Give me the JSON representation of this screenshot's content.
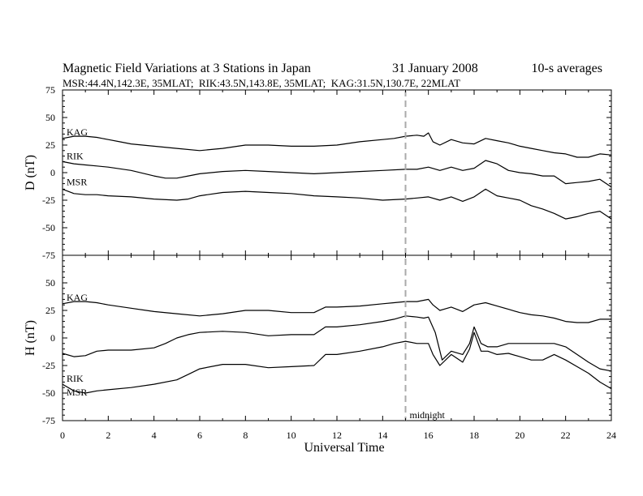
{
  "header": {
    "title": "Magnetic Field Variations at 3 Stations in Japan",
    "date": "31 January 2008",
    "averaging": "10-s averages",
    "stations": "MSR:44.4N,142.3E, 35MLAT;  RIK:43.5N,143.8E, 35MLAT;  KAG:31.5N,130.7E, 22MLAT"
  },
  "colors": {
    "trace": "#000000",
    "marker": "#aaaaaa",
    "background": "#ffffff"
  },
  "chart_data": {
    "type": "line",
    "x_label": "Universal Time",
    "x_range": [
      0,
      24
    ],
    "x_ticks": [
      0,
      2,
      4,
      6,
      8,
      10,
      12,
      14,
      16,
      18,
      20,
      22,
      24
    ],
    "x_tick_labels": [
      "0",
      "2",
      "4",
      "6",
      "8",
      "10",
      "12",
      "14",
      "16",
      "18",
      "20",
      "22",
      "24"
    ],
    "marker": {
      "x": 15,
      "label": "midnight",
      "style": "dashed"
    },
    "panels": [
      {
        "name": "D",
        "y_label": "D (nT)",
        "y_range": [
          -75,
          75
        ],
        "y_ticks": [
          75,
          50,
          25,
          0,
          -25,
          -50,
          -75
        ],
        "y_tick_labels": [
          "75",
          "50",
          "25",
          "0",
          "-25",
          "-50",
          "-75"
        ],
        "series": [
          {
            "name": "KAG",
            "x": [
              0,
              0.5,
              1,
              1.5,
              2,
              2.5,
              3,
              4,
              5,
              6,
              7,
              8,
              9,
              10,
              11,
              12,
              13,
              14,
              14.5,
              15,
              15.5,
              15.8,
              16,
              16.2,
              16.5,
              17,
              17.5,
              18,
              18.5,
              19,
              19.5,
              20,
              20.5,
              21,
              21.5,
              22,
              22.5,
              23,
              23.5,
              24
            ],
            "y": [
              31,
              33,
              33,
              32,
              30,
              28,
              26,
              24,
              22,
              20,
              22,
              25,
              25,
              24,
              24,
              25,
              28,
              30,
              31,
              33,
              34,
              33,
              36,
              28,
              25,
              30,
              27,
              26,
              31,
              29,
              27,
              24,
              22,
              20,
              18,
              17,
              14,
              14,
              17,
              16
            ]
          },
          {
            "name": "RIK",
            "x": [
              0,
              0.5,
              1,
              1.5,
              2,
              3,
              4,
              4.5,
              5,
              5.5,
              6,
              7,
              8,
              9,
              10,
              11,
              12,
              13,
              14,
              15,
              15.5,
              16,
              16.5,
              17,
              17.5,
              18,
              18.5,
              19,
              19.5,
              20,
              20.5,
              21,
              21.5,
              22,
              22.5,
              23,
              23.5,
              24
            ],
            "y": [
              10,
              8,
              7,
              6,
              5,
              2,
              -3,
              -5,
              -5,
              -3,
              -1,
              1,
              2,
              1,
              0,
              -1,
              0,
              1,
              2,
              3,
              3,
              5,
              2,
              5,
              2,
              4,
              11,
              8,
              2,
              0,
              -1,
              -3,
              -3,
              -10,
              -9,
              -8,
              -6,
              -13
            ]
          },
          {
            "name": "MSR",
            "x": [
              0,
              0.5,
              1,
              1.5,
              2,
              3,
              4,
              5,
              5.5,
              6,
              7,
              8,
              9,
              10,
              11,
              12,
              13,
              14,
              15,
              15.5,
              16,
              16.5,
              17,
              17.5,
              18,
              18.5,
              19,
              19.5,
              20,
              20.5,
              21,
              21.5,
              22,
              22.5,
              23,
              23.5,
              24
            ],
            "y": [
              -15,
              -19,
              -20,
              -20,
              -21,
              -22,
              -24,
              -25,
              -24,
              -21,
              -18,
              -17,
              -18,
              -19,
              -21,
              -22,
              -23,
              -25,
              -24,
              -23,
              -22,
              -25,
              -22,
              -26,
              -22,
              -15,
              -21,
              -23,
              -25,
              -30,
              -33,
              -37,
              -42,
              -40,
              -37,
              -35,
              -42
            ]
          }
        ]
      },
      {
        "name": "H",
        "y_label": "H (nT)",
        "y_range": [
          -75,
          75
        ],
        "y_ticks": [
          75,
          50,
          25,
          0,
          -25,
          -50,
          -75
        ],
        "y_tick_labels": [
          "75",
          "50",
          "25",
          "0",
          "-25",
          "-50",
          "-75"
        ],
        "series": [
          {
            "name": "KAG",
            "x": [
              0,
              0.5,
              1,
              1.5,
              2,
              3,
              4,
              5,
              6,
              7,
              8,
              9,
              10,
              11,
              11.5,
              12,
              13,
              14,
              14.5,
              15,
              15.5,
              16,
              16.2,
              16.5,
              17,
              17.5,
              18,
              18.5,
              19,
              19.5,
              20,
              20.5,
              21,
              21.5,
              22,
              22.5,
              23,
              23.5,
              24
            ],
            "y": [
              31,
              33,
              33,
              32,
              30,
              27,
              24,
              22,
              20,
              22,
              25,
              25,
              23,
              23,
              28,
              28,
              29,
              31,
              32,
              33,
              33,
              35,
              30,
              25,
              28,
              24,
              30,
              32,
              29,
              26,
              23,
              21,
              20,
              18,
              15,
              14,
              14,
              17,
              17
            ]
          },
          {
            "name": "RIK",
            "x": [
              0,
              0.5,
              1,
              1.5,
              2,
              3,
              4,
              4.5,
              5,
              5.5,
              6,
              7,
              8,
              9,
              10,
              11,
              11.5,
              12,
              13,
              14,
              14.5,
              15,
              15.5,
              15.8,
              16,
              16.3,
              16.6,
              17,
              17.5,
              17.8,
              18,
              18.3,
              18.6,
              19,
              19.5,
              20,
              20.5,
              21,
              21.5,
              22,
              22.5,
              23,
              23.5,
              24
            ],
            "y": [
              -14,
              -17,
              -16,
              -12,
              -11,
              -11,
              -9,
              -5,
              0,
              3,
              5,
              6,
              5,
              2,
              3,
              3,
              10,
              10,
              12,
              15,
              17,
              20,
              19,
              18,
              19,
              5,
              -20,
              -12,
              -15,
              -5,
              10,
              -5,
              -8,
              -8,
              -5,
              -5,
              -5,
              -5,
              -5,
              -8,
              -15,
              -22,
              -28,
              -30
            ]
          },
          {
            "name": "MSR",
            "x": [
              0,
              0.5,
              1,
              1.5,
              2,
              3,
              4,
              5,
              5.5,
              6,
              7,
              8,
              9,
              10,
              11,
              11.5,
              12,
              13,
              14,
              14.5,
              15,
              15.5,
              16,
              16.2,
              16.5,
              17,
              17.5,
              17.8,
              18,
              18.3,
              18.6,
              19,
              19.5,
              20,
              20.5,
              21,
              21.5,
              22,
              22.5,
              23,
              23.5,
              24
            ],
            "y": [
              -42,
              -48,
              -50,
              -48,
              -47,
              -45,
              -42,
              -38,
              -33,
              -28,
              -24,
              -24,
              -27,
              -26,
              -25,
              -15,
              -15,
              -12,
              -8,
              -5,
              -3,
              -5,
              -5,
              -15,
              -25,
              -15,
              -22,
              -10,
              5,
              -12,
              -12,
              -15,
              -14,
              -17,
              -20,
              -20,
              -15,
              -20,
              -26,
              -32,
              -40,
              -46
            ]
          }
        ]
      }
    ]
  }
}
